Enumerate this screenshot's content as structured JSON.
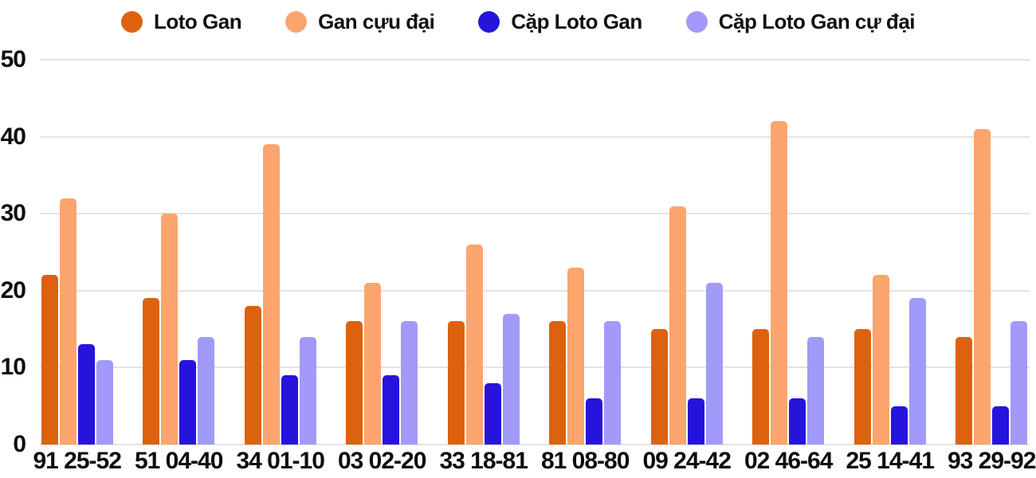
{
  "chart_data": {
    "type": "bar",
    "title": "",
    "xlabel": "",
    "ylabel": "",
    "categories": [
      "91 25-52",
      "51 04-40",
      "34 01-10",
      "03 02-20",
      "33 18-81",
      "81 08-80",
      "09 24-42",
      "02 46-64",
      "25 14-41",
      "93 29-92"
    ],
    "series": [
      {
        "name": "Loto Gan",
        "color": "#DD620F",
        "values": [
          22,
          19,
          18,
          16,
          16,
          16,
          15,
          15,
          15,
          14
        ]
      },
      {
        "name": "Gan cựu đại",
        "color": "#FCA56E",
        "values": [
          32,
          30,
          39,
          21,
          26,
          23,
          31,
          42,
          22,
          41
        ]
      },
      {
        "name": "Cặp Loto Gan",
        "color": "#2614DD",
        "values": [
          13,
          11,
          9,
          9,
          8,
          6,
          6,
          6,
          5,
          5
        ]
      },
      {
        "name": "Cặp Loto Gan cự đại",
        "color": "#A29AF8",
        "values": [
          11,
          14,
          14,
          16,
          17,
          16,
          21,
          14,
          19,
          16
        ]
      }
    ],
    "ylim": [
      0,
      50
    ],
    "yticks": [
      0,
      10,
      20,
      30,
      40,
      50
    ],
    "grid": true,
    "legend_position": "top"
  },
  "colors": {
    "background": "#FFFFFF",
    "gridline": "#E3E3E3",
    "axis_text": "#0D0D0D"
  }
}
